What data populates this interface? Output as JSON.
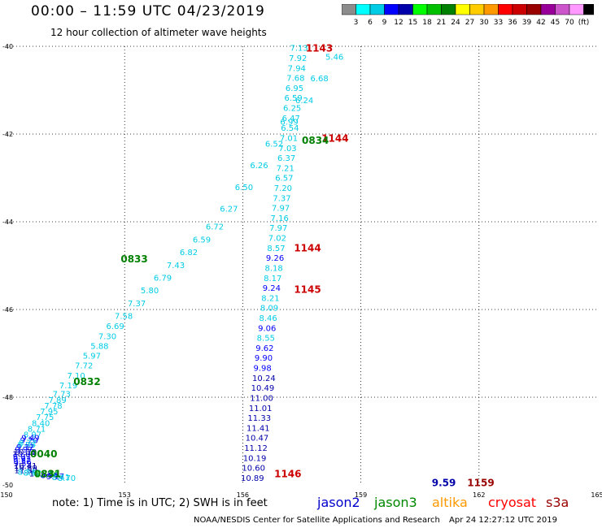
{
  "header": {
    "title": "00:00 – 11:59 UTC 04/23/2019",
    "subtitle": "12 hour collection of altimeter wave heights"
  },
  "colorbar": {
    "colors": [
      "#8c8c8c",
      "#00ffff",
      "#00cce6",
      "#0000ff",
      "#0000aa",
      "#00ff00",
      "#00c000",
      "#008000",
      "#ffff00",
      "#ffcc00",
      "#ff9900",
      "#ff0000",
      "#cc0000",
      "#990000",
      "#990099",
      "#cc55cc",
      "#ff99ff",
      "#000000"
    ],
    "labels": [
      "3",
      "6",
      "9",
      "12",
      "15",
      "18",
      "21",
      "24",
      "27",
      "30",
      "33",
      "36",
      "39",
      "42",
      "45",
      "70",
      "(ft)"
    ]
  },
  "footer": {
    "note": "note:  1) Time is in UTC;  2) SWH is in feet",
    "credit": "NOAA/NESDIS Center for Satellite Applications and Research",
    "timestamp": "Apr 24 12:27:12 UTC 2019"
  },
  "satellites": [
    {
      "name": "jason2",
      "color": "#0000cc"
    },
    {
      "name": "jason3",
      "color": "#008800"
    },
    {
      "name": "altika",
      "color": "#ff9900"
    },
    {
      "name": "cryosat",
      "color": "#ff0000"
    },
    {
      "name": "s3a",
      "color": "#990000"
    }
  ],
  "chart_data": {
    "type": "scatter",
    "title": "12 hour collection of altimeter wave heights",
    "xlabel": "",
    "ylabel": "",
    "xlim": [
      150,
      165
    ],
    "ylim": [
      -50,
      -40
    ],
    "x_ticks": [
      "150",
      "153",
      "156",
      "159",
      "162",
      "165"
    ],
    "y_ticks": [
      "-40",
      "-42",
      "-44",
      "-46",
      "-48",
      "-50"
    ],
    "grid": true,
    "track_a_swh_ft": [
      "7.13",
      "7.92",
      "7.94",
      "7.68",
      "6.95",
      "6.59",
      "6.25",
      "6.47",
      "6.54",
      "7.01",
      "7.03",
      "6.37",
      "7.21",
      "6.57",
      "7.20",
      "7.37",
      "7.97",
      "7.16",
      "7.97",
      "7.02",
      "8.57",
      "9.26",
      "8.18",
      "8.17",
      "9.24",
      "8.21",
      "8.09",
      "8.46",
      "9.06",
      "8.55",
      "9.62",
      "9.90",
      "9.98",
      "10.24",
      "10.49",
      "11.00",
      "11.01",
      "11.33",
      "11.41",
      "10.47",
      "11.12",
      "10.19",
      "10.60",
      "10.89"
    ],
    "track_b_swh_ft": [
      "5.46",
      "6.68",
      "6.24",
      "6.99",
      "6.52",
      "6.26",
      "6.50",
      "6.27",
      "6.72",
      "6.59",
      "6.82",
      "7.43",
      "6.79",
      "5.80",
      "7.37",
      "7.58",
      "6.69",
      "7.30",
      "5.88",
      "5.97",
      "7.72",
      "7.10",
      "7.19",
      "7.73",
      "7.89",
      "7.78",
      "7.95",
      "7.75",
      "8.40",
      "8.71",
      "8.97",
      "9.49",
      "9.20",
      "8.72",
      "8.86",
      "9.32",
      "9.97",
      "10.19",
      "10.08",
      "9.97",
      "9.92",
      "9.52",
      "9.59",
      "10.41",
      "10.89",
      "11.50",
      "8.34",
      "8.62",
      "11.78",
      "12.26",
      "8.96",
      "9.17",
      "8.41",
      "8.70"
    ],
    "track_b_colors": [
      "#00cce6",
      "#00cce6",
      "#00cce6",
      "#00cce6",
      "#00cce6",
      "#00cce6",
      "#00cce6",
      "#00cce6",
      "#00cce6",
      "#00cce6",
      "#00cce6",
      "#00cce6",
      "#00cce6",
      "#00cce6",
      "#00cce6",
      "#00cce6",
      "#00cce6",
      "#00cce6",
      "#00cce6",
      "#00cce6",
      "#00cce6",
      "#00cce6",
      "#00cce6",
      "#00cce6",
      "#00cce6",
      "#00cce6",
      "#00cce6",
      "#00cce6",
      "#00cce6",
      "#00cce6",
      "#00cce6",
      "#0000ff",
      "#0000ff",
      "#00cce6",
      "#00cce6",
      "#0000ff",
      "#0000ff",
      "#0000aa",
      "#0000aa",
      "#0000ff",
      "#0000ff",
      "#0000ff",
      "#0000ff",
      "#0000aa",
      "#0000aa",
      "#0000aa",
      "#00cce6",
      "#00cce6",
      "#0000aa",
      "#00ff00",
      "#0000ff",
      "#0000ff",
      "#00cce6",
      "#00cce6"
    ],
    "point_labels": [
      {
        "text": "1143",
        "x": 157.6,
        "y": -40.05,
        "color": "#cc0000"
      },
      {
        "text": "1144",
        "x": 158.0,
        "y": -42.1,
        "color": "#cc0000"
      },
      {
        "text": "0834",
        "x": 157.5,
        "y": -42.15,
        "color": "#008000"
      },
      {
        "text": "1144",
        "x": 157.3,
        "y": -44.6,
        "color": "#cc0000"
      },
      {
        "text": "0833",
        "x": 152.9,
        "y": -44.85,
        "color": "#008000"
      },
      {
        "text": "1145",
        "x": 157.3,
        "y": -45.55,
        "color": "#cc0000"
      },
      {
        "text": "0832",
        "x": 151.7,
        "y": -47.65,
        "color": "#008000"
      },
      {
        "text": "0040",
        "x": 150.6,
        "y": -49.3,
        "color": "#008000"
      },
      {
        "text": "0831",
        "x": 150.7,
        "y": -49.75,
        "color": "#008000"
      },
      {
        "text": "1146",
        "x": 156.8,
        "y": -49.75,
        "color": "#cc0000"
      },
      {
        "text": "9.59",
        "x": 160.8,
        "y": -49.95,
        "color": "#0000aa"
      },
      {
        "text": "1159",
        "x": 161.7,
        "y": -49.95,
        "color": "#990000"
      }
    ]
  }
}
